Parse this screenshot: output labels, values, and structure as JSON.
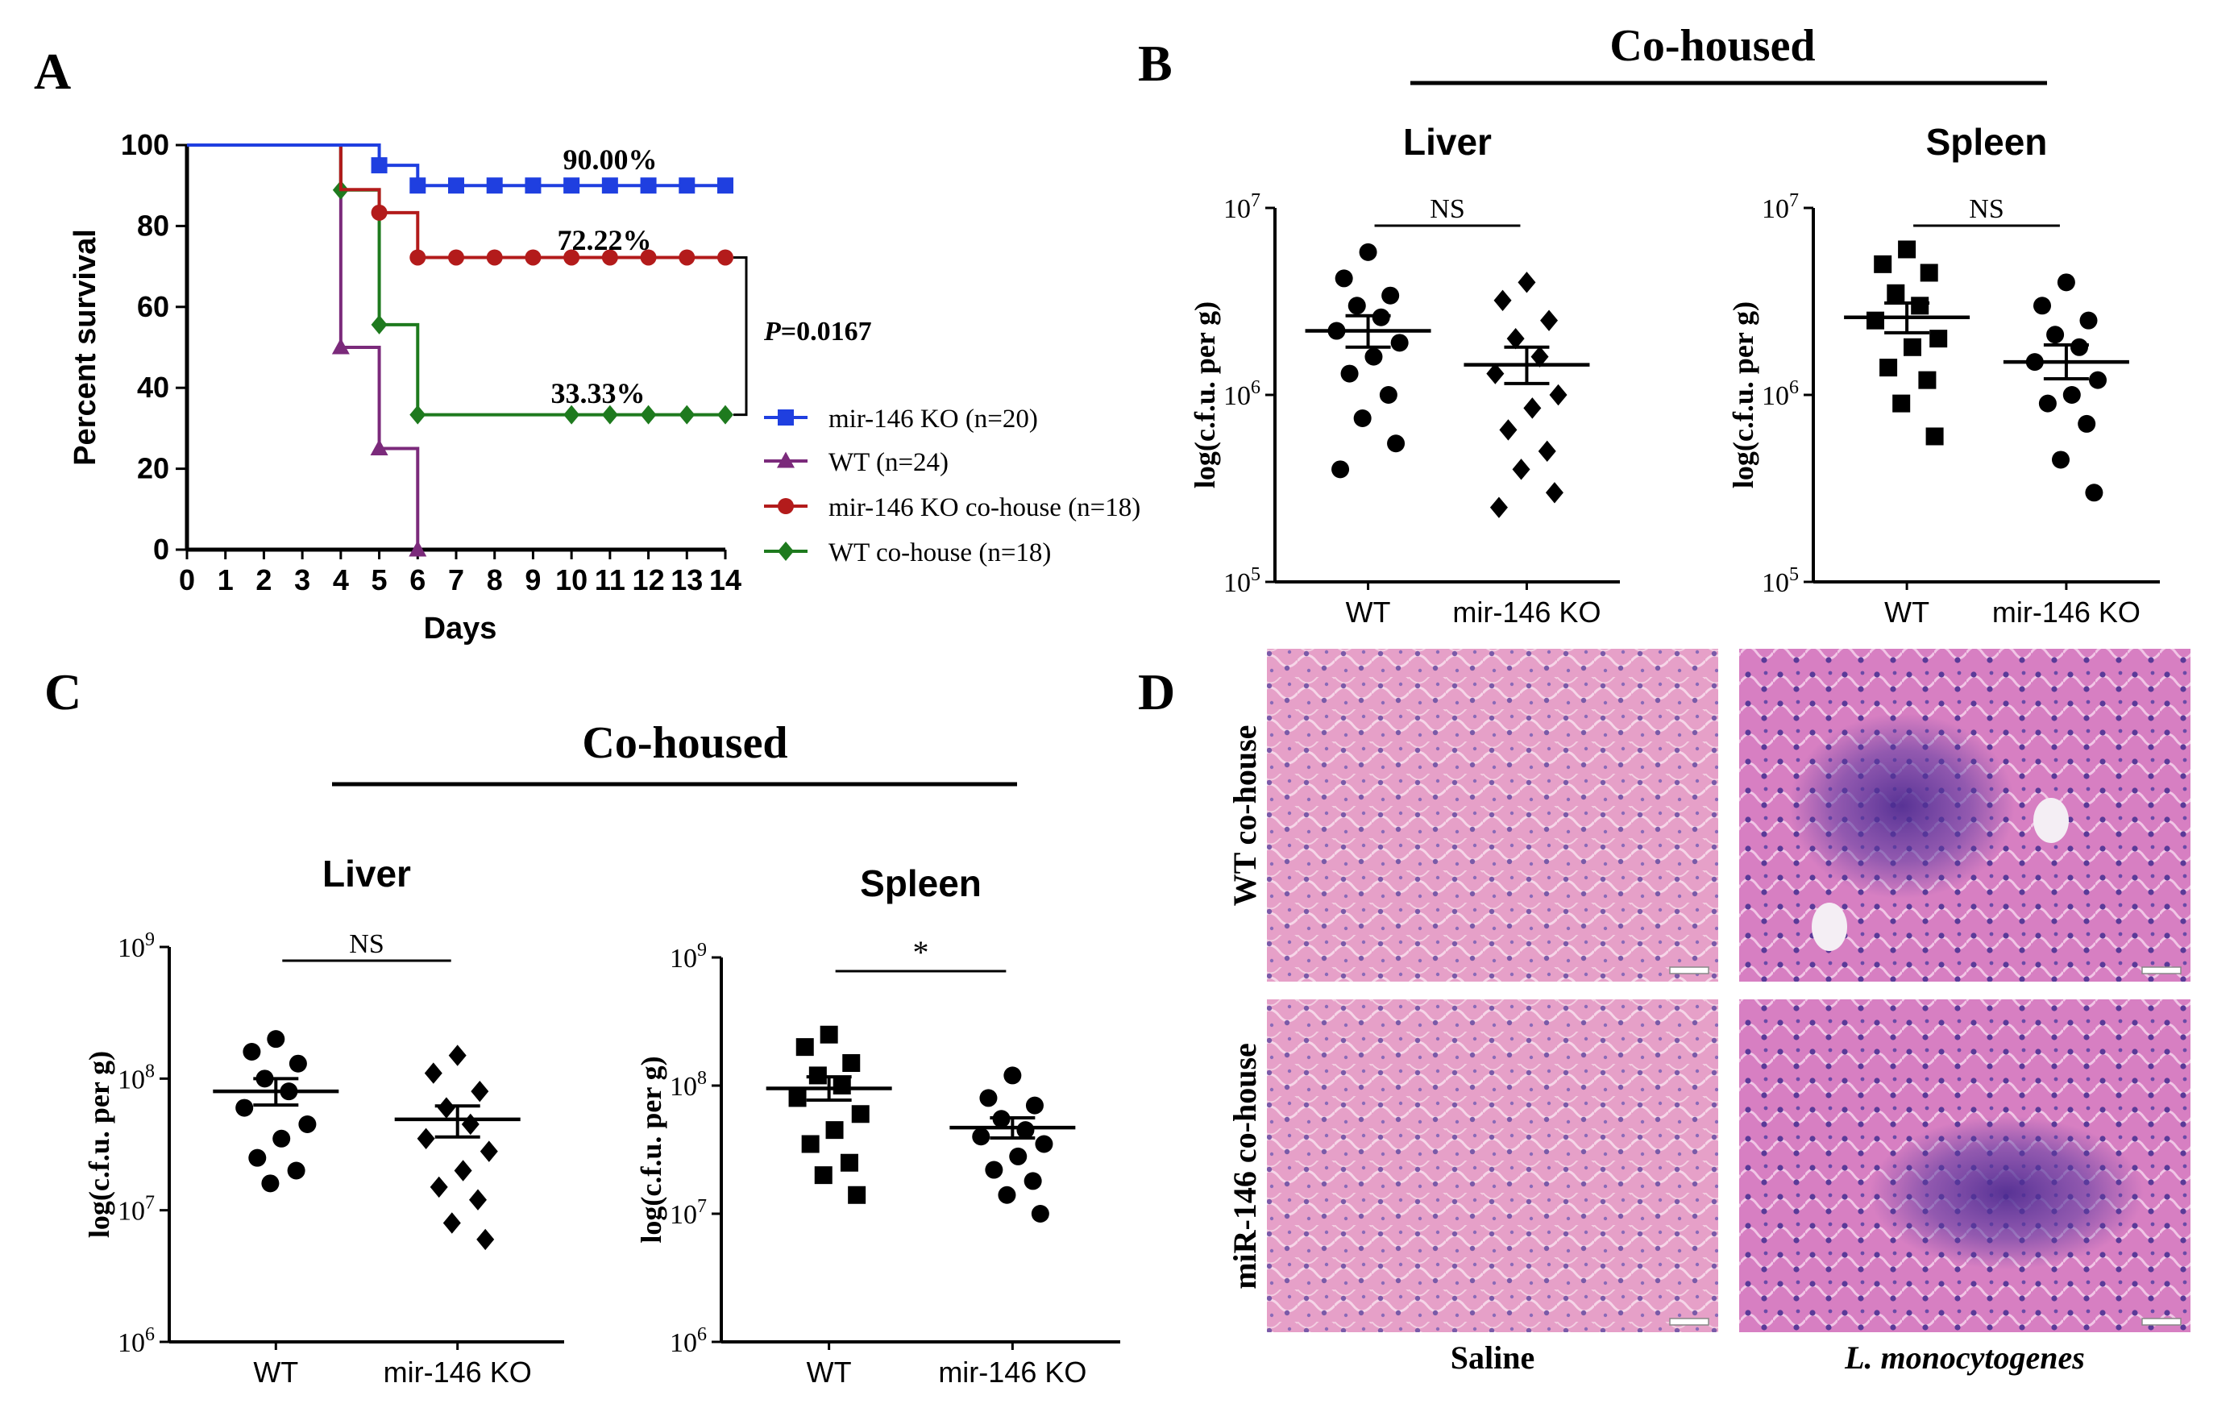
{
  "panel_labels": {
    "a": "A",
    "b": "B",
    "c": "C",
    "d": "D"
  },
  "cohoused_label": "Co-housed",
  "chart_data": [
    {
      "id": "A",
      "type": "line",
      "subtype": "kaplan-meier survival",
      "title": "",
      "xlabel": "Days",
      "ylabel": "Percent survival",
      "xlim": [
        0,
        14
      ],
      "ylim": [
        0,
        100
      ],
      "xticks": [
        0,
        1,
        2,
        3,
        4,
        5,
        6,
        7,
        8,
        9,
        10,
        11,
        12,
        13,
        14
      ],
      "yticks": [
        0,
        20,
        40,
        60,
        80,
        100
      ],
      "series": [
        {
          "name": "mir-146 KO (n=20)",
          "color": "#1f3fe0",
          "marker": "square",
          "steps": [
            [
              0,
              100
            ],
            [
              5,
              100
            ],
            [
              5,
              95
            ],
            [
              6,
              95
            ],
            [
              6,
              90
            ],
            [
              14,
              90
            ]
          ],
          "markers": [
            [
              5,
              95
            ],
            [
              6,
              90
            ],
            [
              7,
              90
            ],
            [
              8,
              90
            ],
            [
              9,
              90
            ],
            [
              10,
              90
            ],
            [
              11,
              90
            ],
            [
              12,
              90
            ],
            [
              13,
              90
            ],
            [
              14,
              90
            ]
          ],
          "end_label": "90.00%"
        },
        {
          "name": "WT (n=24)",
          "color": "#7b2a7b",
          "marker": "triangle",
          "steps": [
            [
              0,
              100
            ],
            [
              4,
              100
            ],
            [
              4,
              50
            ],
            [
              5,
              50
            ],
            [
              5,
              25
            ],
            [
              6,
              25
            ],
            [
              6,
              0
            ]
          ],
          "markers": [
            [
              4,
              50
            ],
            [
              5,
              25
            ],
            [
              6,
              0
            ]
          ],
          "end_label": ""
        },
        {
          "name": "mir-146 KO co-house (n=18)",
          "color": "#b31b1b",
          "marker": "circle",
          "steps": [
            [
              0,
              100
            ],
            [
              4,
              100
            ],
            [
              4,
              89
            ],
            [
              5,
              89
            ],
            [
              5,
              83.3
            ],
            [
              6,
              83.3
            ],
            [
              6,
              72.22
            ],
            [
              14,
              72.22
            ]
          ],
          "markers": [
            [
              5,
              83.3
            ],
            [
              6,
              72.22
            ],
            [
              7,
              72.22
            ],
            [
              8,
              72.22
            ],
            [
              9,
              72.22
            ],
            [
              10,
              72.22
            ],
            [
              11,
              72.22
            ],
            [
              12,
              72.22
            ],
            [
              13,
              72.22
            ],
            [
              14,
              72.22
            ]
          ],
          "end_label": "72.22%"
        },
        {
          "name": "WT co-house (n=18)",
          "color": "#1e7a1e",
          "marker": "diamond",
          "steps": [
            [
              0,
              100
            ],
            [
              4,
              100
            ],
            [
              4,
              88.9
            ],
            [
              5,
              88.9
            ],
            [
              5,
              55.6
            ],
            [
              6,
              55.6
            ],
            [
              6,
              33.33
            ],
            [
              14,
              33.33
            ]
          ],
          "markers": [
            [
              4,
              88.9
            ],
            [
              5,
              55.6
            ],
            [
              6,
              33.33
            ],
            [
              10,
              33.33
            ],
            [
              11,
              33.33
            ],
            [
              12,
              33.33
            ],
            [
              13,
              33.33
            ],
            [
              14,
              33.33
            ]
          ],
          "end_label": "33.33%"
        }
      ],
      "annotation": {
        "p_prefix": "P",
        "p_value": "=0.0167"
      }
    },
    {
      "id": "B-liver",
      "type": "scatter",
      "title": "Liver",
      "ylabel": "log(c.f.u. per g)",
      "yscale": "log",
      "ylim_exp": [
        5,
        7
      ],
      "categories": [
        "WT",
        "mir-146 KO"
      ],
      "markers": [
        "circle",
        "diamond"
      ],
      "points": [
        [
          5800000.0,
          4200000.0,
          3400000.0,
          3000000.0,
          2600000.0,
          2200000.0,
          1900000.0,
          1600000.0,
          1300000.0,
          1000000.0,
          750000.0,
          550000.0,
          400000.0
        ],
        [
          4000000.0,
          3200000.0,
          2500000.0,
          2000000.0,
          1600000.0,
          1300000.0,
          1000000.0,
          850000.0,
          650000.0,
          500000.0,
          400000.0,
          300000.0,
          250000.0
        ]
      ],
      "mean": [
        2200000.0,
        1450000.0
      ],
      "sem_low": [
        1800000.0,
        1150000.0
      ],
      "sem_high": [
        2650000.0,
        1800000.0
      ],
      "significance": "NS"
    },
    {
      "id": "B-spleen",
      "type": "scatter",
      "title": "Spleen",
      "ylabel": "log(c.f.u. per g)",
      "yscale": "log",
      "ylim_exp": [
        5,
        7
      ],
      "categories": [
        "WT",
        "mir-146 KO"
      ],
      "markers": [
        "square",
        "circle"
      ],
      "points": [
        [
          6000000.0,
          5000000.0,
          4500000.0,
          3500000.0,
          3000000.0,
          2500000.0,
          2000000.0,
          1800000.0,
          1400000.0,
          1200000.0,
          900000.0,
          600000.0
        ],
        [
          4000000.0,
          3000000.0,
          2500000.0,
          2100000.0,
          1800000.0,
          1500000.0,
          1200000.0,
          1000000.0,
          900000.0,
          700000.0,
          450000.0,
          300000.0
        ]
      ],
      "mean": [
        2600000.0,
        1500000.0
      ],
      "sem_low": [
        2150000.0,
        1220000.0
      ],
      "sem_high": [
        3100000.0,
        1850000.0
      ],
      "significance": "NS"
    },
    {
      "id": "C-liver",
      "type": "scatter",
      "title": "Liver",
      "ylabel": "log(c.f.u. per g)",
      "yscale": "log",
      "ylim_exp": [
        6,
        9
      ],
      "categories": [
        "WT",
        "mir-146 KO"
      ],
      "markers": [
        "circle",
        "diamond"
      ],
      "points": [
        [
          200000000.0,
          160000000.0,
          130000000.0,
          100000000.0,
          80000000.0,
          60000000.0,
          45000000.0,
          35000000.0,
          25000000.0,
          20000000.0,
          16000000.0
        ],
        [
          150000000.0,
          110000000.0,
          80000000.0,
          60000000.0,
          45000000.0,
          35000000.0,
          28000000.0,
          20000000.0,
          15000000.0,
          12000000.0,
          8000000.0,
          6000000.0
        ]
      ],
      "mean": [
        80000000.0,
        49000000.0
      ],
      "sem_low": [
        63000000.0,
        36000000.0
      ],
      "sem_high": [
        100000000.0,
        62000000.0
      ],
      "significance": "NS"
    },
    {
      "id": "C-spleen",
      "type": "scatter",
      "title": "Spleen",
      "ylabel": "log(c.f.u. per g)",
      "yscale": "log",
      "ylim_exp": [
        6,
        9
      ],
      "categories": [
        "WT",
        "mir-146 KO"
      ],
      "markers": [
        "square",
        "circle"
      ],
      "points": [
        [
          250000000.0,
          200000000.0,
          150000000.0,
          120000000.0,
          100000000.0,
          80000000.0,
          60000000.0,
          45000000.0,
          35000000.0,
          25000000.0,
          20000000.0,
          14000000.0
        ],
        [
          120000000.0,
          80000000.0,
          70000000.0,
          55000000.0,
          45000000.0,
          40000000.0,
          35000000.0,
          28000000.0,
          22000000.0,
          18000000.0,
          14000000.0,
          10000000.0
        ]
      ],
      "mean": [
        95000000.0,
        47000000.0
      ],
      "sem_low": [
        77000000.0,
        39000000.0
      ],
      "sem_high": [
        117000000.0,
        56000000.0
      ],
      "significance": "*"
    }
  ],
  "histology": {
    "row_labels": [
      "WT co-house",
      "miR-146 co-house"
    ],
    "col_labels": [
      "Saline",
      "L. monocytogenes"
    ]
  }
}
